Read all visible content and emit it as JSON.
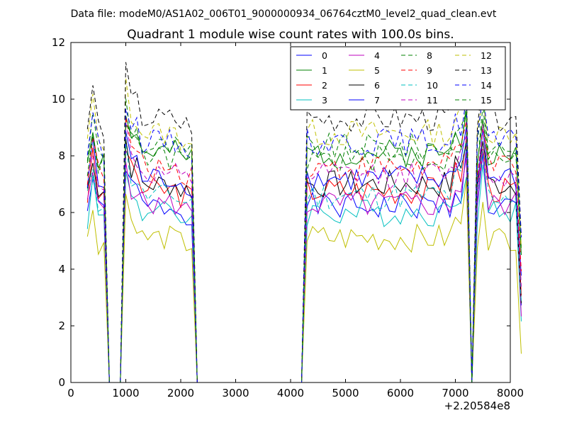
{
  "chart_data": {
    "type": "line",
    "suptitle": "Data file: modeM0/AS1A02_006T01_9000000934_06764cztM0_level2_quad_clean.evt",
    "title": "Quadrant 1 module wise count rates with 100.0s bins.",
    "xlabel": "",
    "ylabel": "",
    "xlim": [
      0,
      8000
    ],
    "ylim": [
      0,
      12
    ],
    "x_offset_label": "+2.20584e8",
    "xticks": [
      "0",
      "1000",
      "2000",
      "3000",
      "4000",
      "5000",
      "6000",
      "7000",
      "8000"
    ],
    "yticks": [
      "0",
      "2",
      "4",
      "6",
      "8",
      "10",
      "12"
    ],
    "legend_position": "upper right",
    "segments": [
      {
        "x_start": 300,
        "n": 4
      },
      {
        "x_start": 600,
        "n": 3
      },
      {
        "x_start": 900,
        "n": 13
      },
      {
        "x_start": 2100,
        "n": 20
      },
      {
        "x_start": 4100,
        "n": 30
      },
      {
        "x_start": 7100,
        "n": 9
      }
    ],
    "series": [
      {
        "name": "0",
        "color": "#0000ff",
        "dash": "solid",
        "level": 6.2
      },
      {
        "name": "1",
        "color": "#008000",
        "dash": "solid",
        "level": 8.1
      },
      {
        "name": "2",
        "color": "#ff0000",
        "dash": "solid",
        "level": 6.8
      },
      {
        "name": "3",
        "color": "#00bfbf",
        "dash": "solid",
        "level": 6.0
      },
      {
        "name": "4",
        "color": "#bf00bf",
        "dash": "solid",
        "level": 6.3
      },
      {
        "name": "5",
        "color": "#bfbf00",
        "dash": "solid",
        "level": 5.1
      },
      {
        "name": "6",
        "color": "#000000",
        "dash": "solid",
        "level": 7.0
      },
      {
        "name": "7",
        "color": "#0000ff",
        "dash": "solid",
        "level": 7.2
      },
      {
        "name": "8",
        "color": "#008000",
        "dash": "dashed",
        "level": 8.3
      },
      {
        "name": "9",
        "color": "#ff0000",
        "dash": "dashed",
        "level": 7.6
      },
      {
        "name": "10",
        "color": "#00bfbf",
        "dash": "dashed",
        "level": 6.6
      },
      {
        "name": "11",
        "color": "#bf00bf",
        "dash": "dashed",
        "level": 7.3
      },
      {
        "name": "12",
        "color": "#bfbf00",
        "dash": "dashed",
        "level": 8.8
      },
      {
        "name": "13",
        "color": "#000000",
        "dash": "dashed",
        "level": 9.3
      },
      {
        "name": "14",
        "color": "#0000ff",
        "dash": "dashed",
        "level": 8.5
      },
      {
        "name": "15",
        "color": "#008000",
        "dash": "dashed",
        "level": 7.9
      }
    ]
  }
}
